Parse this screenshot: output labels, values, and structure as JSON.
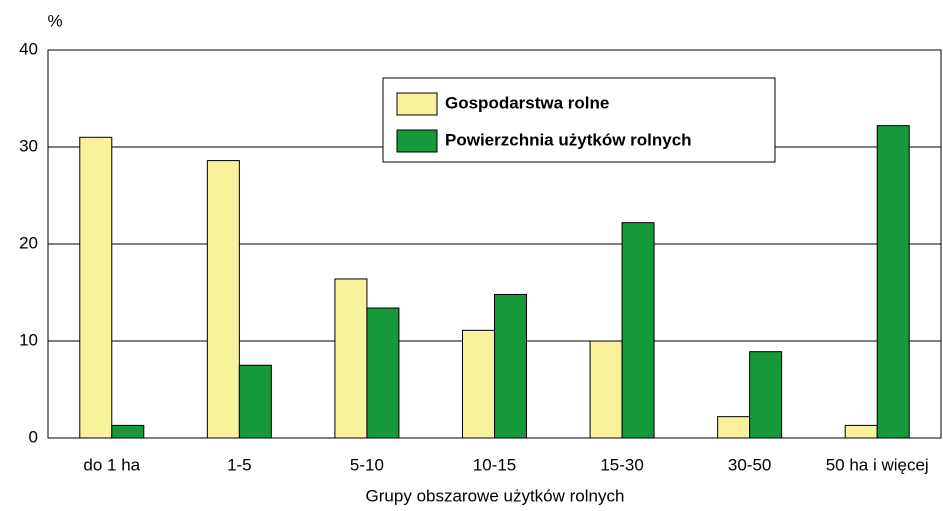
{
  "chart_data": {
    "type": "bar",
    "y_label": "%",
    "x_label": "Grupy obszarowe użytków rolnych",
    "categories": [
      "do 1 ha",
      "1-5",
      "5-10",
      "10-15",
      "15-30",
      "30-50",
      "50 ha i więcej"
    ],
    "series": [
      {
        "name": "Gospodarstwa rolne",
        "color": "#f8f29c",
        "values": [
          31.0,
          28.6,
          16.4,
          11.1,
          10.0,
          2.2,
          1.3
        ]
      },
      {
        "name": "Powierzchnia użytków rolnych",
        "color": "#15993a",
        "values": [
          1.3,
          7.5,
          13.4,
          14.8,
          22.2,
          8.9,
          32.2
        ]
      }
    ],
    "ylim": [
      0,
      40
    ],
    "yticks": [
      0,
      10,
      20,
      30,
      40
    ],
    "grid": true
  }
}
